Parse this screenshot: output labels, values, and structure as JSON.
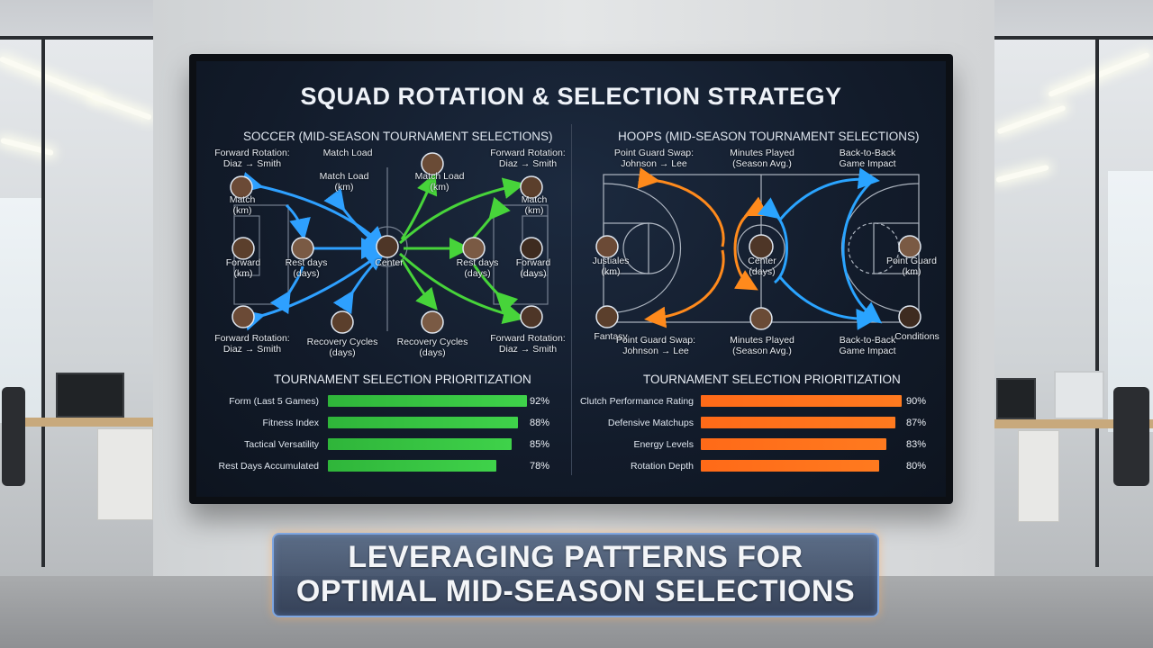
{
  "screen": {
    "title": "SQUAD ROTATION & SELECTION STRATEGY"
  },
  "soccer": {
    "section_title": "SOCCER (MID-SEASON TOURNAMENT SELECTIONS)",
    "labels": {
      "forward_rotation_top": "Forward Rotation:\nDiaz → Smith",
      "match_load_top": "Match Load",
      "forward_rotation_top_right": "Forward Rotation:\nDiaz → Smith",
      "match_left": "Match\n(km)",
      "match_load_mid": "Match Load\n(km)",
      "match_load_icon": "Match Load\n(km)",
      "match_right": "Match\n(km)",
      "forward_left": "Forward\n(km)",
      "rest_days_left": "Rest days\n(days)",
      "center": "Center",
      "rest_days_right": "Rest days\n(days)",
      "forward_right": "Forward\n(days)",
      "forward_rotation_bottom": "Forward Rotation:\nDiaz → Smith",
      "recovery_cycles_left": "Recovery Cycles\n(days)",
      "recovery_cycles_right": "Recovery Cycles\n(days)",
      "forward_rotation_bottom_right": "Forward Rotation:\nDiaz → Smith"
    },
    "prioritization": {
      "title": "TOURNAMENT SELECTION PRIORITIZATION",
      "items": [
        {
          "label": "Form (Last 5 Games)",
          "value": 92,
          "display": "92%"
        },
        {
          "label": "Fitness Index",
          "value": 88,
          "display": "88%"
        },
        {
          "label": "Tactical Versatility",
          "value": 85,
          "display": "85%"
        },
        {
          "label": "Rest Days Accumulated",
          "value": 78,
          "display": "78%"
        }
      ],
      "color": "#3fd24a"
    }
  },
  "hoops": {
    "section_title": "HOOPS (MID-SEASON TOURNAMENT SELECTIONS)",
    "labels": {
      "point_guard_swap_top": "Point Guard Swap:\nJohnson → Lee",
      "minutes_played_top": "Minutes Played\n(Season Avg.)",
      "back_to_back_top": "Back-to-Back\nGame Impact",
      "justiales_left": "Justiales\n(km)",
      "center": "Center\n(days)",
      "point_guard_right": "Point Guard\n(km)",
      "bottom_left": "Fantasy",
      "point_guard_swap_bottom": "Point Guard Swap:\nJohnson → Lee",
      "minutes_played_bottom": "Minutes Played\n(Season Avg.)",
      "back_to_back_bottom": "Back-to-Back\nGame Impact",
      "bottom_right": "Conditions"
    },
    "prioritization": {
      "title": "TOURNAMENT SELECTION PRIORITIZATION",
      "items": [
        {
          "label": "Clutch Performance Rating",
          "value": 90,
          "display": "90%"
        },
        {
          "label": "Defensive Matchups",
          "value": 87,
          "display": "87%"
        },
        {
          "label": "Energy Levels",
          "value": 83,
          "display": "83%"
        },
        {
          "label": "Rotation Depth",
          "value": 80,
          "display": "80%"
        }
      ],
      "color": "#ff7a1f"
    }
  },
  "caption": {
    "line1": "LEVERAGING PATTERNS FOR",
    "line2": "OPTIMAL MID-SEASON SELECTIONS"
  },
  "colors": {
    "soccer_arrow_blue": "#2ea0ff",
    "soccer_arrow_green": "#47d43a",
    "hoops_arrow_orange": "#ff8a1c",
    "hoops_arrow_blue": "#2aa4ff"
  }
}
